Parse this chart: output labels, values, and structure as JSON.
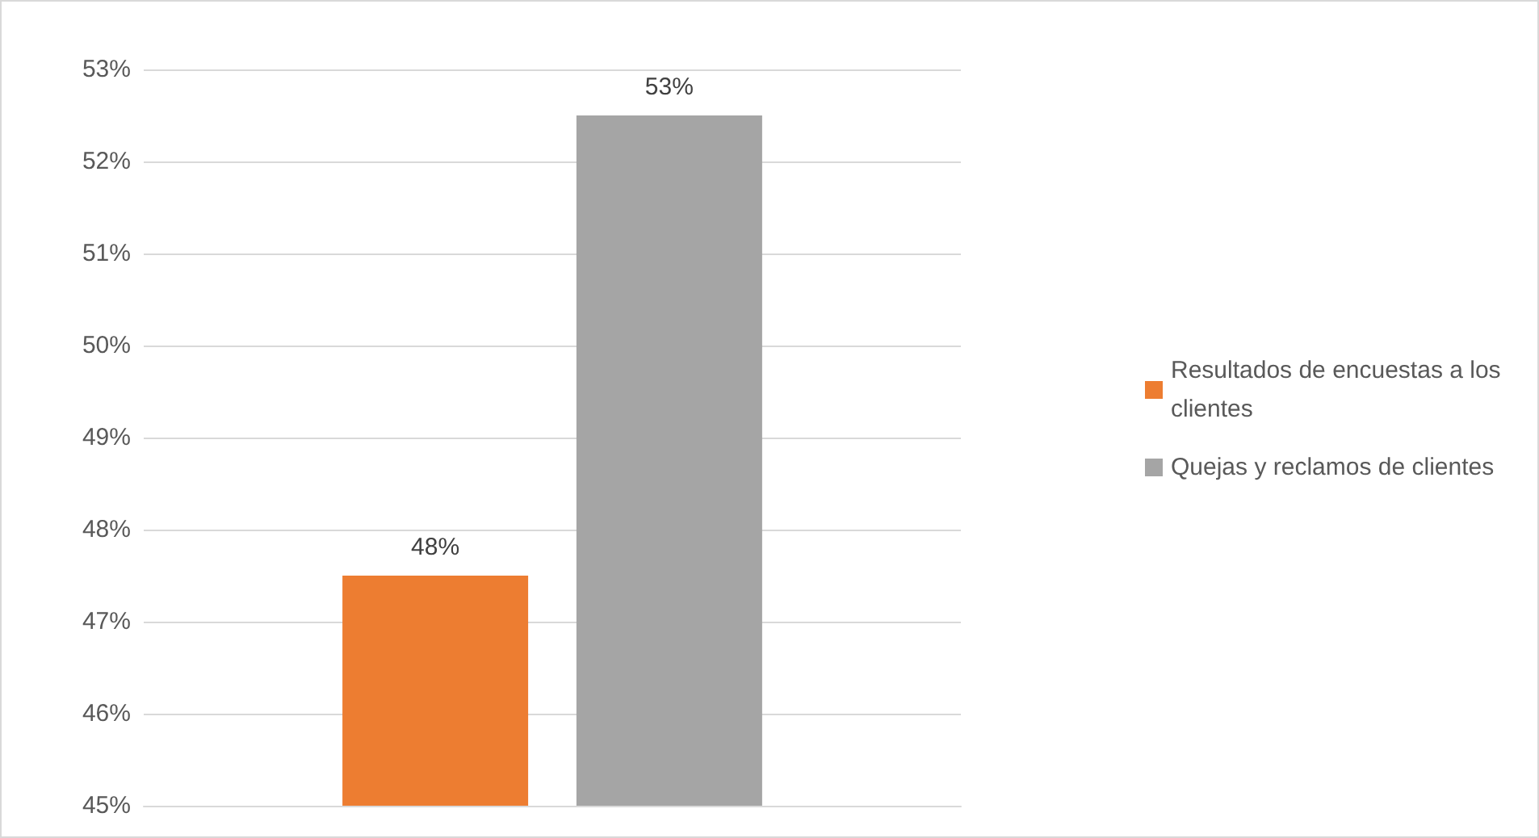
{
  "chart_data": {
    "type": "bar",
    "categories": [
      null
    ],
    "series": [
      {
        "name": "Resultados de encuestas a los clientes",
        "color": "#ed7d31",
        "values": [
          47.5
        ],
        "value_labels": [
          "48%"
        ]
      },
      {
        "name": "Quejas y reclamos de clientes",
        "color": "#a5a5a5",
        "values": [
          52.5
        ],
        "value_labels": [
          "53%"
        ]
      }
    ],
    "ylim": [
      45,
      53
    ],
    "yticks": [
      {
        "value": 45,
        "label": "45%"
      },
      {
        "value": 46,
        "label": "46%"
      },
      {
        "value": 47,
        "label": "47%"
      },
      {
        "value": 48,
        "label": "48%"
      },
      {
        "value": 49,
        "label": "49%"
      },
      {
        "value": 50,
        "label": "50%"
      },
      {
        "value": 51,
        "label": "51%"
      },
      {
        "value": 52,
        "label": "52%"
      },
      {
        "value": 53,
        "label": "53%"
      }
    ],
    "grid": "y",
    "legend": "right"
  }
}
